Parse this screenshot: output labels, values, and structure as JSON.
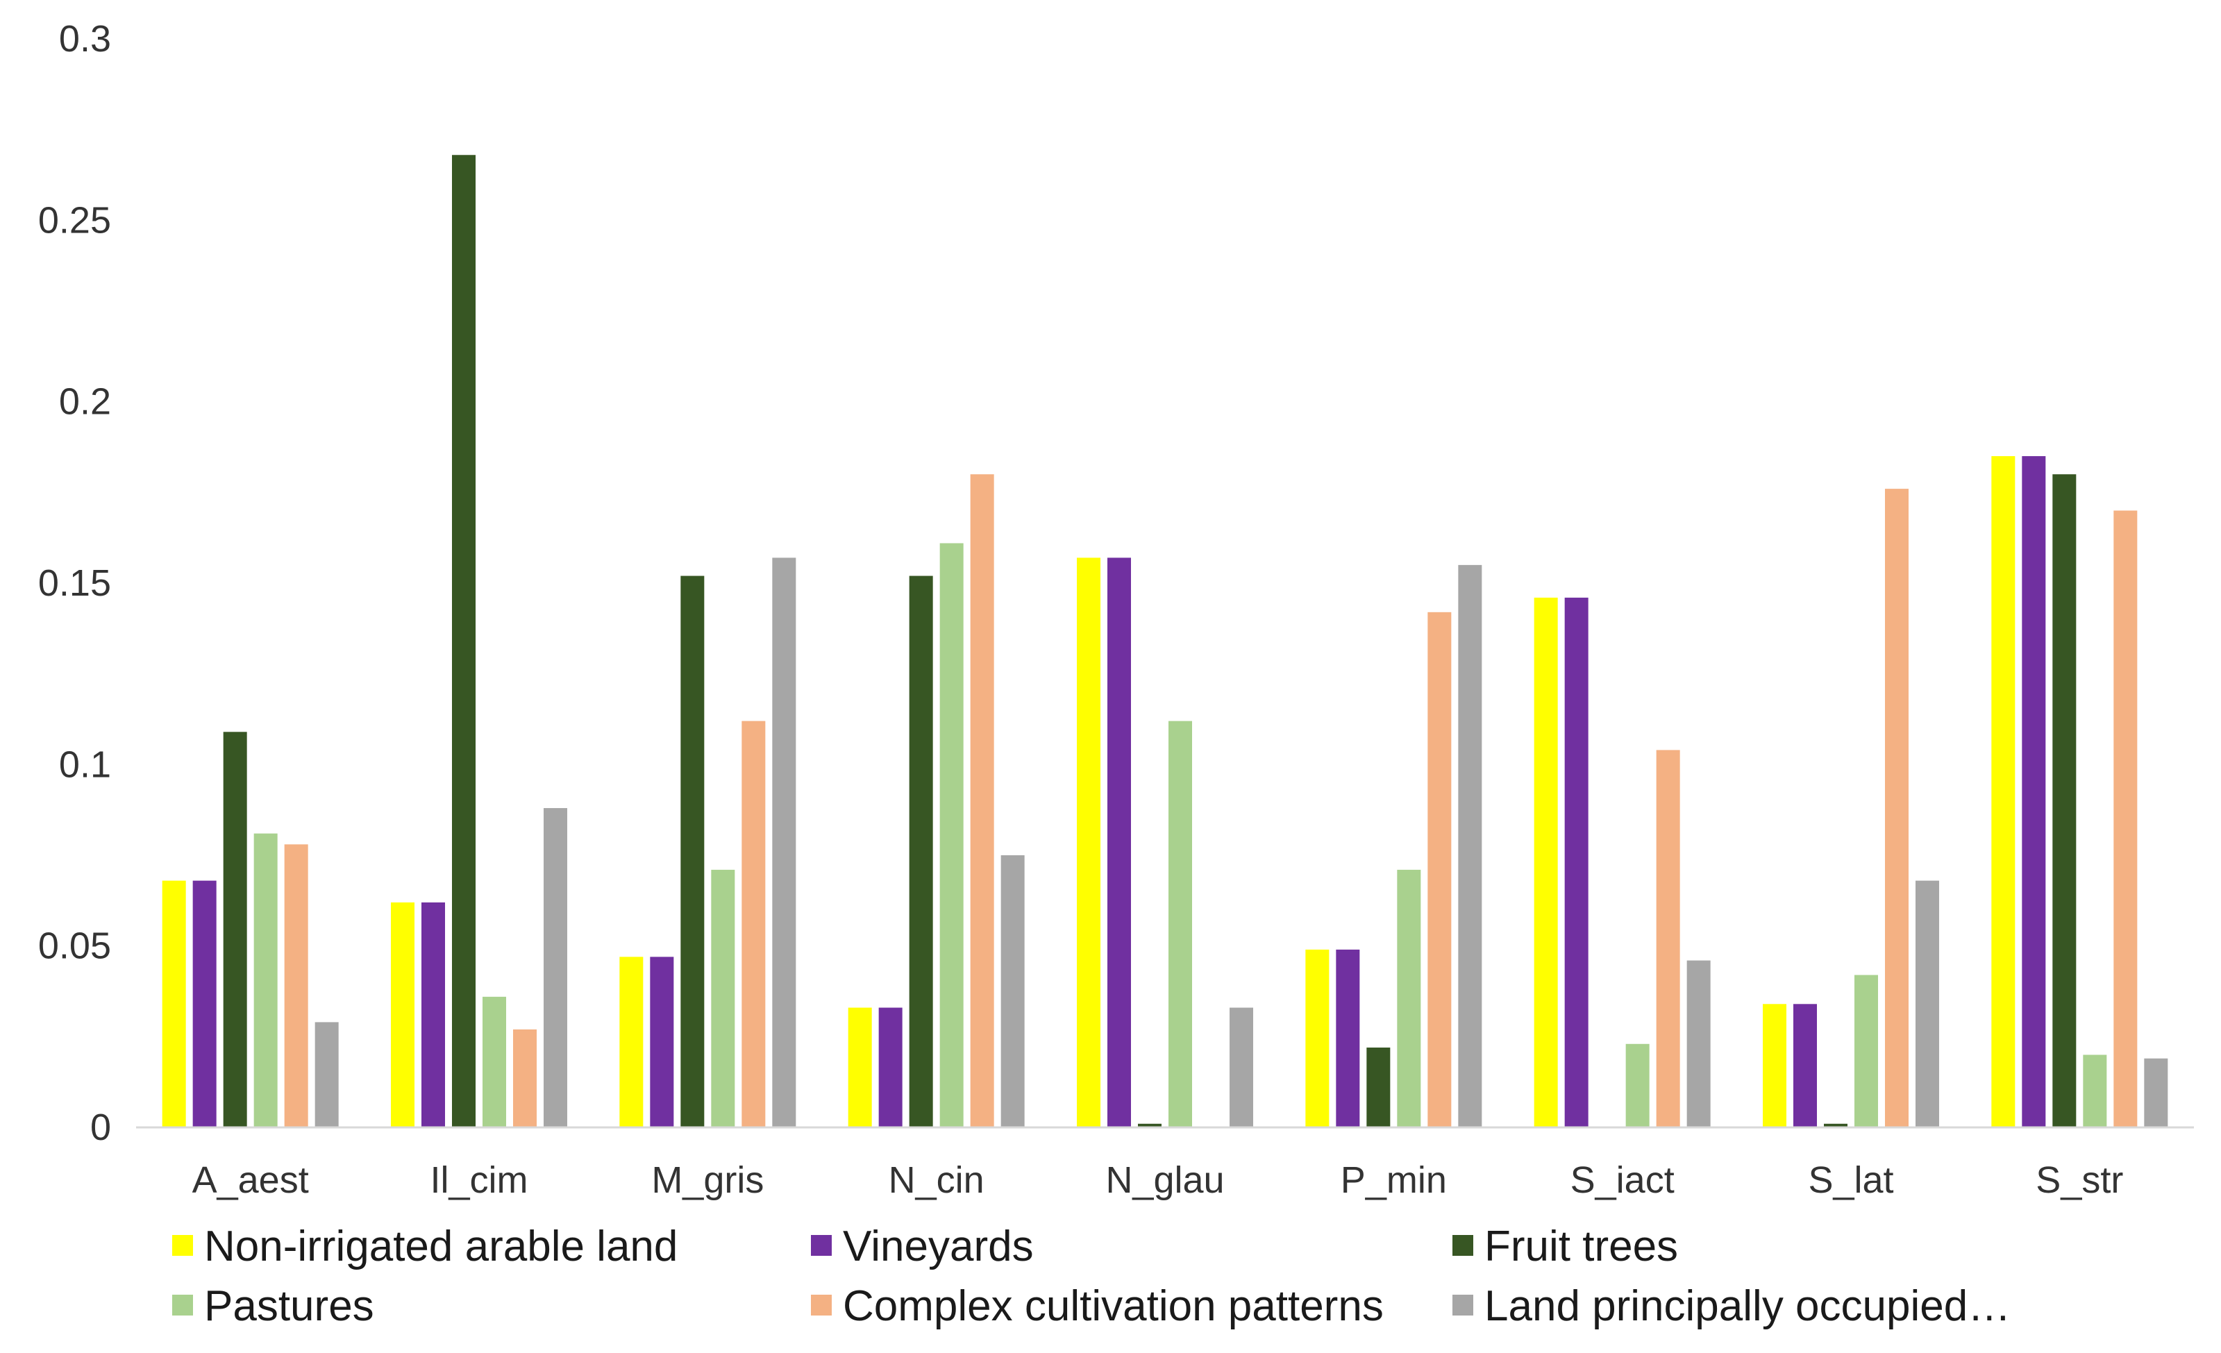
{
  "chart_data": {
    "type": "bar",
    "title": "",
    "xlabel": "",
    "ylabel": "",
    "ylim": [
      0,
      0.3
    ],
    "y_ticks": [
      "0",
      "0.05",
      "0.1",
      "0.15",
      "0.2",
      "0.25",
      "0.3"
    ],
    "grid": false,
    "legend_position": "bottom",
    "categories": [
      "A_aest",
      "Il_cim",
      "M_gris",
      "N_cin",
      "N_glau",
      "P_min",
      "S_iact",
      "S_lat",
      "S_str"
    ],
    "series": [
      {
        "name": "Non-irrigated arable land",
        "color": "#ffff00",
        "values": [
          0.068,
          0.062,
          0.047,
          0.033,
          0.157,
          0.049,
          0.146,
          0.034,
          0.185
        ]
      },
      {
        "name": "Vineyards",
        "color": "#7030a0",
        "values": [
          0.068,
          0.062,
          0.047,
          0.033,
          0.157,
          0.049,
          0.146,
          0.034,
          0.185
        ]
      },
      {
        "name": "Fruit trees",
        "color": "#375623",
        "values": [
          0.109,
          0.268,
          0.152,
          0.152,
          0.001,
          0.022,
          0.0,
          0.001,
          0.18
        ]
      },
      {
        "name": "Pastures",
        "color": "#a9d18e",
        "values": [
          0.081,
          0.036,
          0.071,
          0.161,
          0.112,
          0.071,
          0.023,
          0.042,
          0.02
        ]
      },
      {
        "name": "Complex cultivation patterns",
        "color": "#f4b183",
        "values": [
          0.078,
          0.027,
          0.112,
          0.18,
          0.0,
          0.142,
          0.104,
          0.176,
          0.17
        ]
      },
      {
        "name": "Land principally occupied…",
        "color": "#a6a6a6",
        "values": [
          0.029,
          0.088,
          0.157,
          0.075,
          0.033,
          0.155,
          0.046,
          0.068,
          0.019
        ]
      }
    ]
  }
}
